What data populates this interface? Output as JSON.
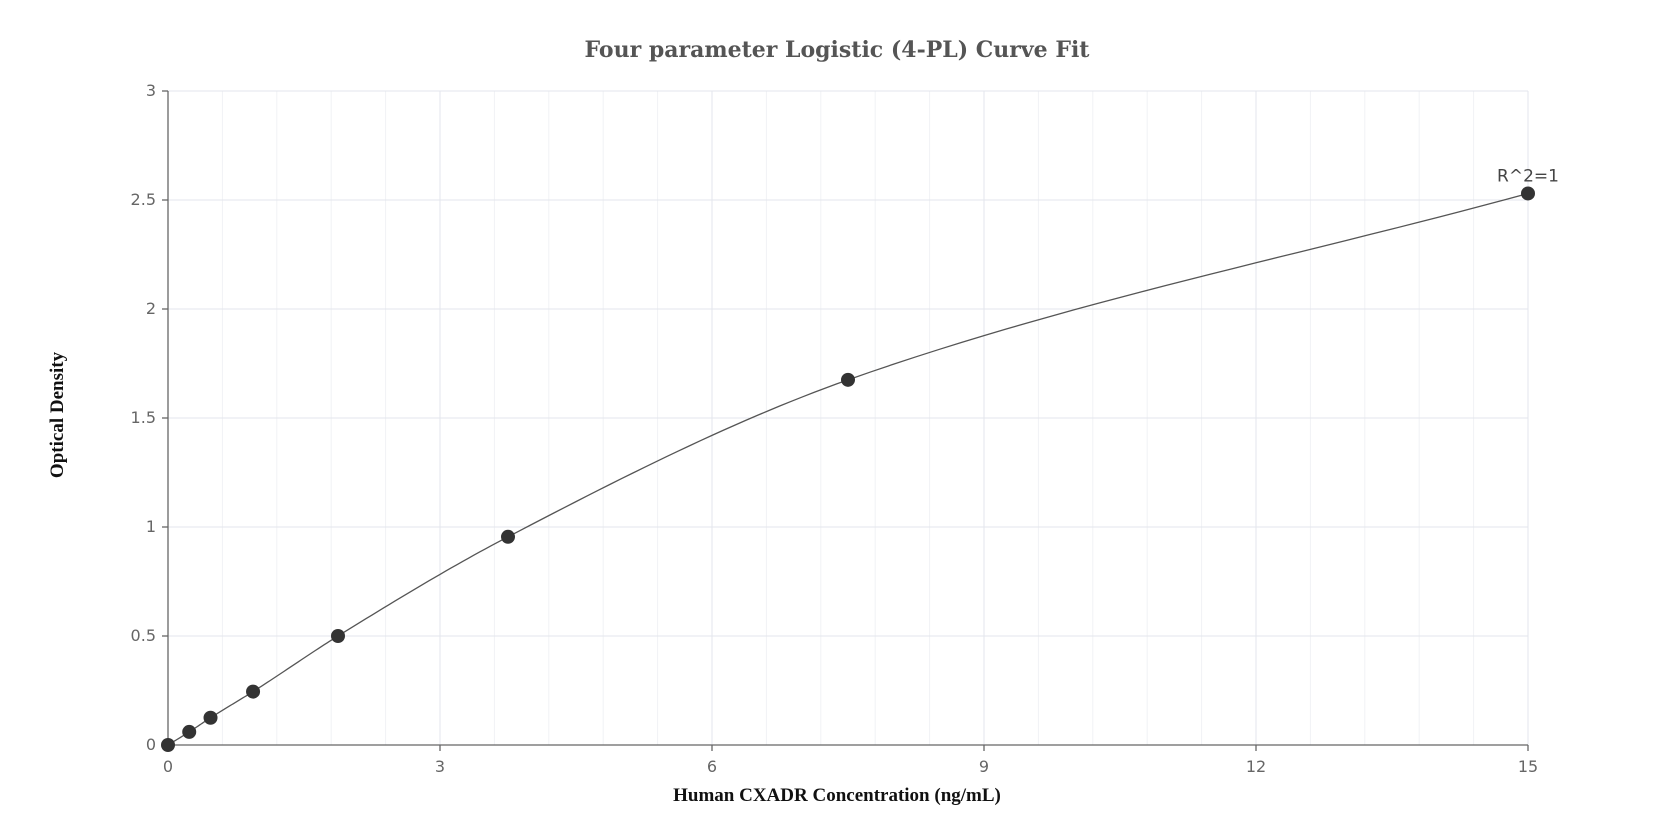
{
  "chart_data": {
    "type": "scatter",
    "title": "Four parameter Logistic (4-PL) Curve Fit",
    "xlabel": "Human CXADR Concentration (ng/mL)",
    "ylabel": "Optical Density",
    "xlim": [
      0,
      15
    ],
    "ylim": [
      0,
      3
    ],
    "x_ticks": [
      0,
      3,
      6,
      9,
      12,
      15
    ],
    "x_tick_labels": [
      "0",
      "3",
      "6",
      "9",
      "12",
      "15"
    ],
    "y_ticks": [
      0,
      0.5,
      1,
      1.5,
      2,
      2.5,
      3
    ],
    "y_tick_labels": [
      "0",
      "0.5",
      "1",
      "1.5",
      "2",
      "2.5",
      "3"
    ],
    "grid": true,
    "series": [
      {
        "x": [
          0,
          0.234,
          0.469,
          0.938,
          1.875,
          3.75,
          7.5,
          15
        ],
        "y": [
          0.0,
          0.06,
          0.125,
          0.245,
          0.5,
          0.955,
          1.675,
          2.53
        ]
      }
    ],
    "fit_curve": "4-PL",
    "annotations": [
      {
        "text": "R^2=1",
        "x": 15,
        "y": 2.53
      }
    ],
    "colors": {
      "points": "#333333",
      "curve": "#555555",
      "grid": "#e3e6ec"
    }
  }
}
